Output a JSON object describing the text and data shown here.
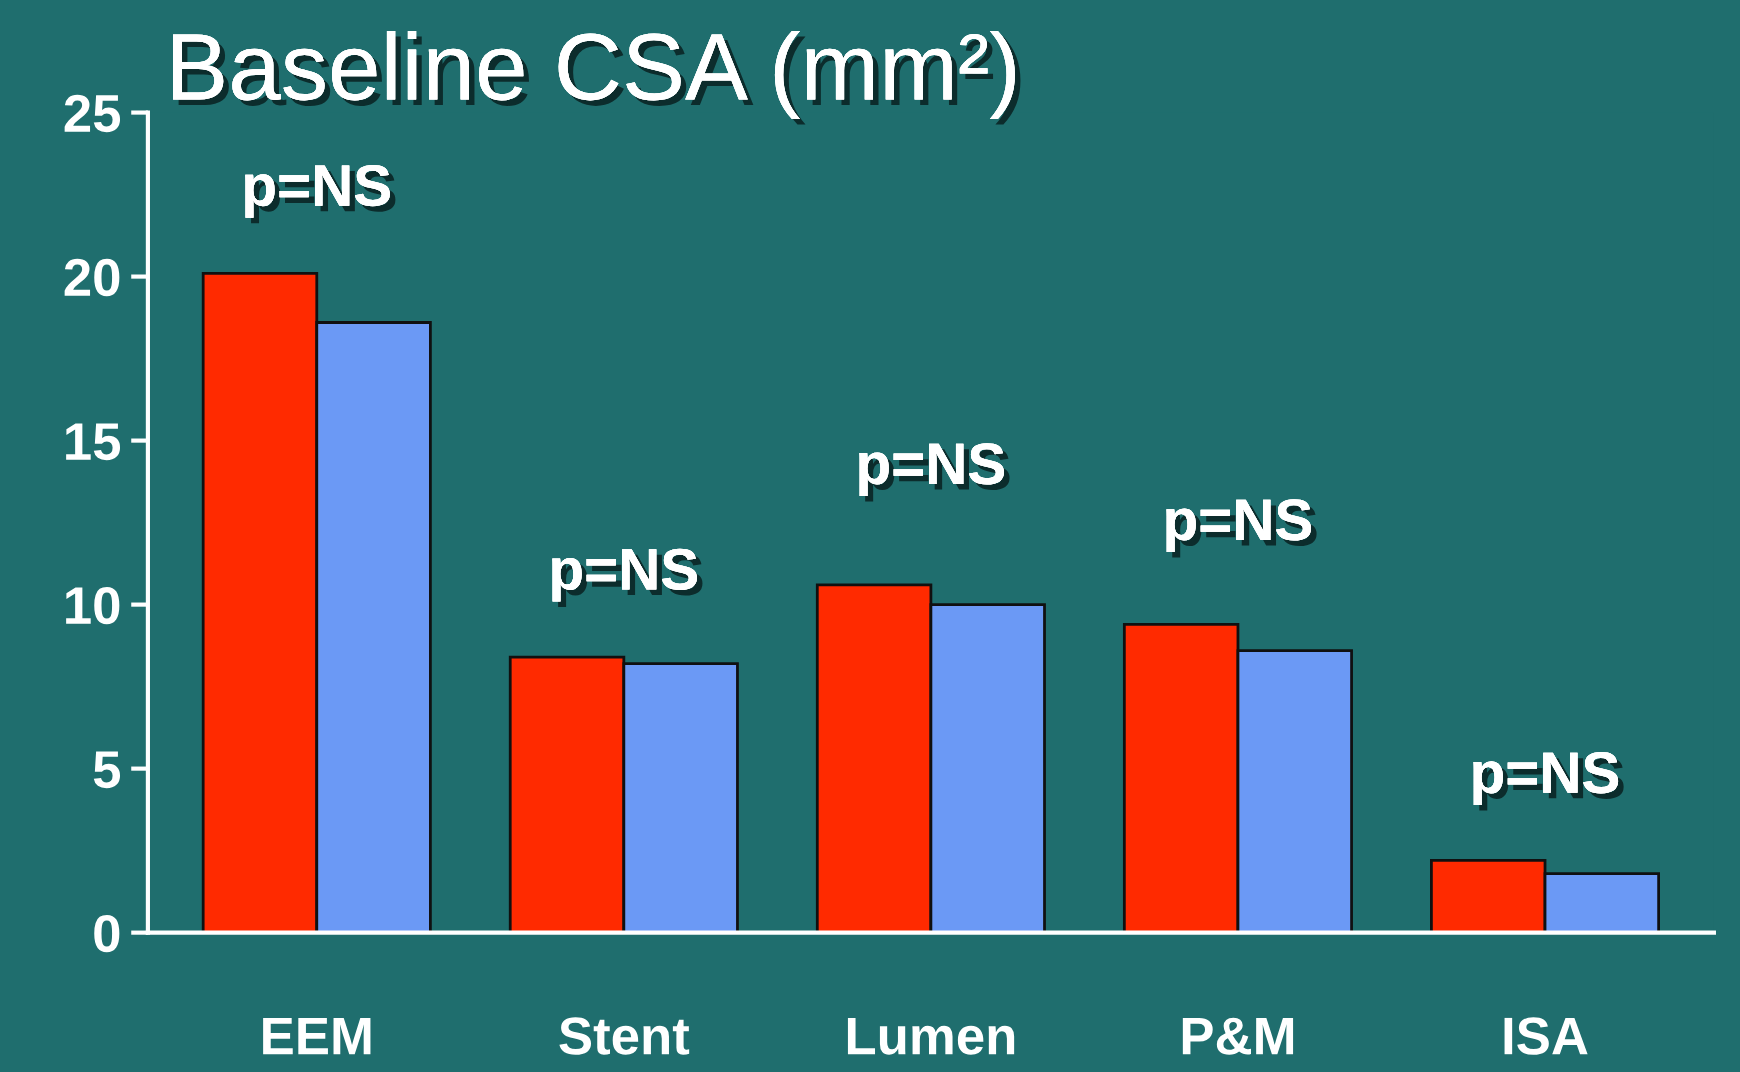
{
  "chart_data": {
    "type": "bar",
    "title": "Baseline CSA (mm²)",
    "categories": [
      "EEM",
      "Stent",
      "Lumen",
      "P&M",
      "ISA"
    ],
    "series": [
      {
        "color": "#ff2a00",
        "values": [
          20.1,
          8.4,
          10.6,
          9.4,
          2.2
        ]
      },
      {
        "color": "#6b99f5",
        "values": [
          18.6,
          8.2,
          10.0,
          8.6,
          1.8
        ]
      }
    ],
    "ylim": [
      0,
      25
    ],
    "yticks": [
      0,
      5,
      10,
      15,
      20,
      25
    ],
    "grid": false,
    "legend": false,
    "annotations": [
      "p=NS",
      "p=NS",
      "p=NS",
      "p=NS",
      "p=NS"
    ]
  }
}
